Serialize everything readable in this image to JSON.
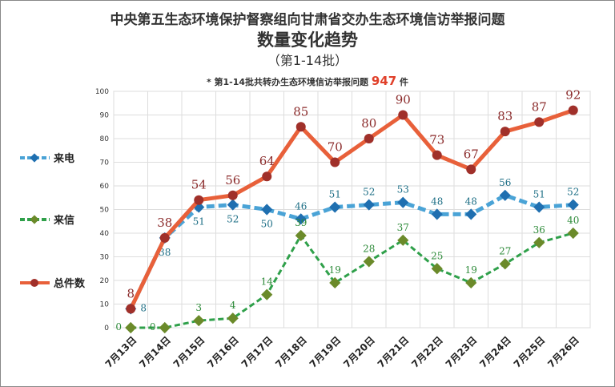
{
  "chart_data": {
    "type": "line",
    "title": "中央第五生态环境保护督察组向甘肃省交办生态环境信访举报问题",
    "subtitle": "数量变化趋势",
    "subtitle2": "（第1-14批）",
    "note_prefix": "* 第1-14批共转办生态环境信访举报问题",
    "note_value": "947",
    "note_suffix": "件",
    "categories": [
      "7月13日",
      "7月14日",
      "7月15日",
      "7月16日",
      "7月17日",
      "7月18日",
      "7月19日",
      "7月20日",
      "7月21日",
      "7月22日",
      "7月23日",
      "7月24日",
      "7月25日",
      "7月26日"
    ],
    "ylim": [
      0,
      100
    ],
    "yticks": [
      0,
      10,
      20,
      30,
      40,
      50,
      60,
      70,
      80,
      90,
      100
    ],
    "grid": true,
    "legend_position": "left",
    "series": [
      {
        "name": "来电",
        "color": "#4aa3d6",
        "marker": "#1f6fb0",
        "label_color": "#1e6f86",
        "dashed": true,
        "values": [
          8,
          38,
          51,
          52,
          50,
          46,
          51,
          52,
          53,
          48,
          48,
          56,
          51,
          52
        ]
      },
      {
        "name": "来信",
        "color": "#2fa04a",
        "marker": "#6b8a2a",
        "label_color": "#2e8b3a",
        "dashed": true,
        "values": [
          0,
          0,
          3,
          4,
          14,
          39,
          19,
          28,
          37,
          25,
          19,
          27,
          36,
          40
        ]
      },
      {
        "name": "总件数",
        "color": "#e8603a",
        "marker": "#a0302a",
        "label_color": "#8b2b2b",
        "dashed": false,
        "values": [
          8,
          38,
          54,
          56,
          64,
          85,
          70,
          80,
          90,
          73,
          67,
          83,
          87,
          92
        ]
      }
    ]
  }
}
